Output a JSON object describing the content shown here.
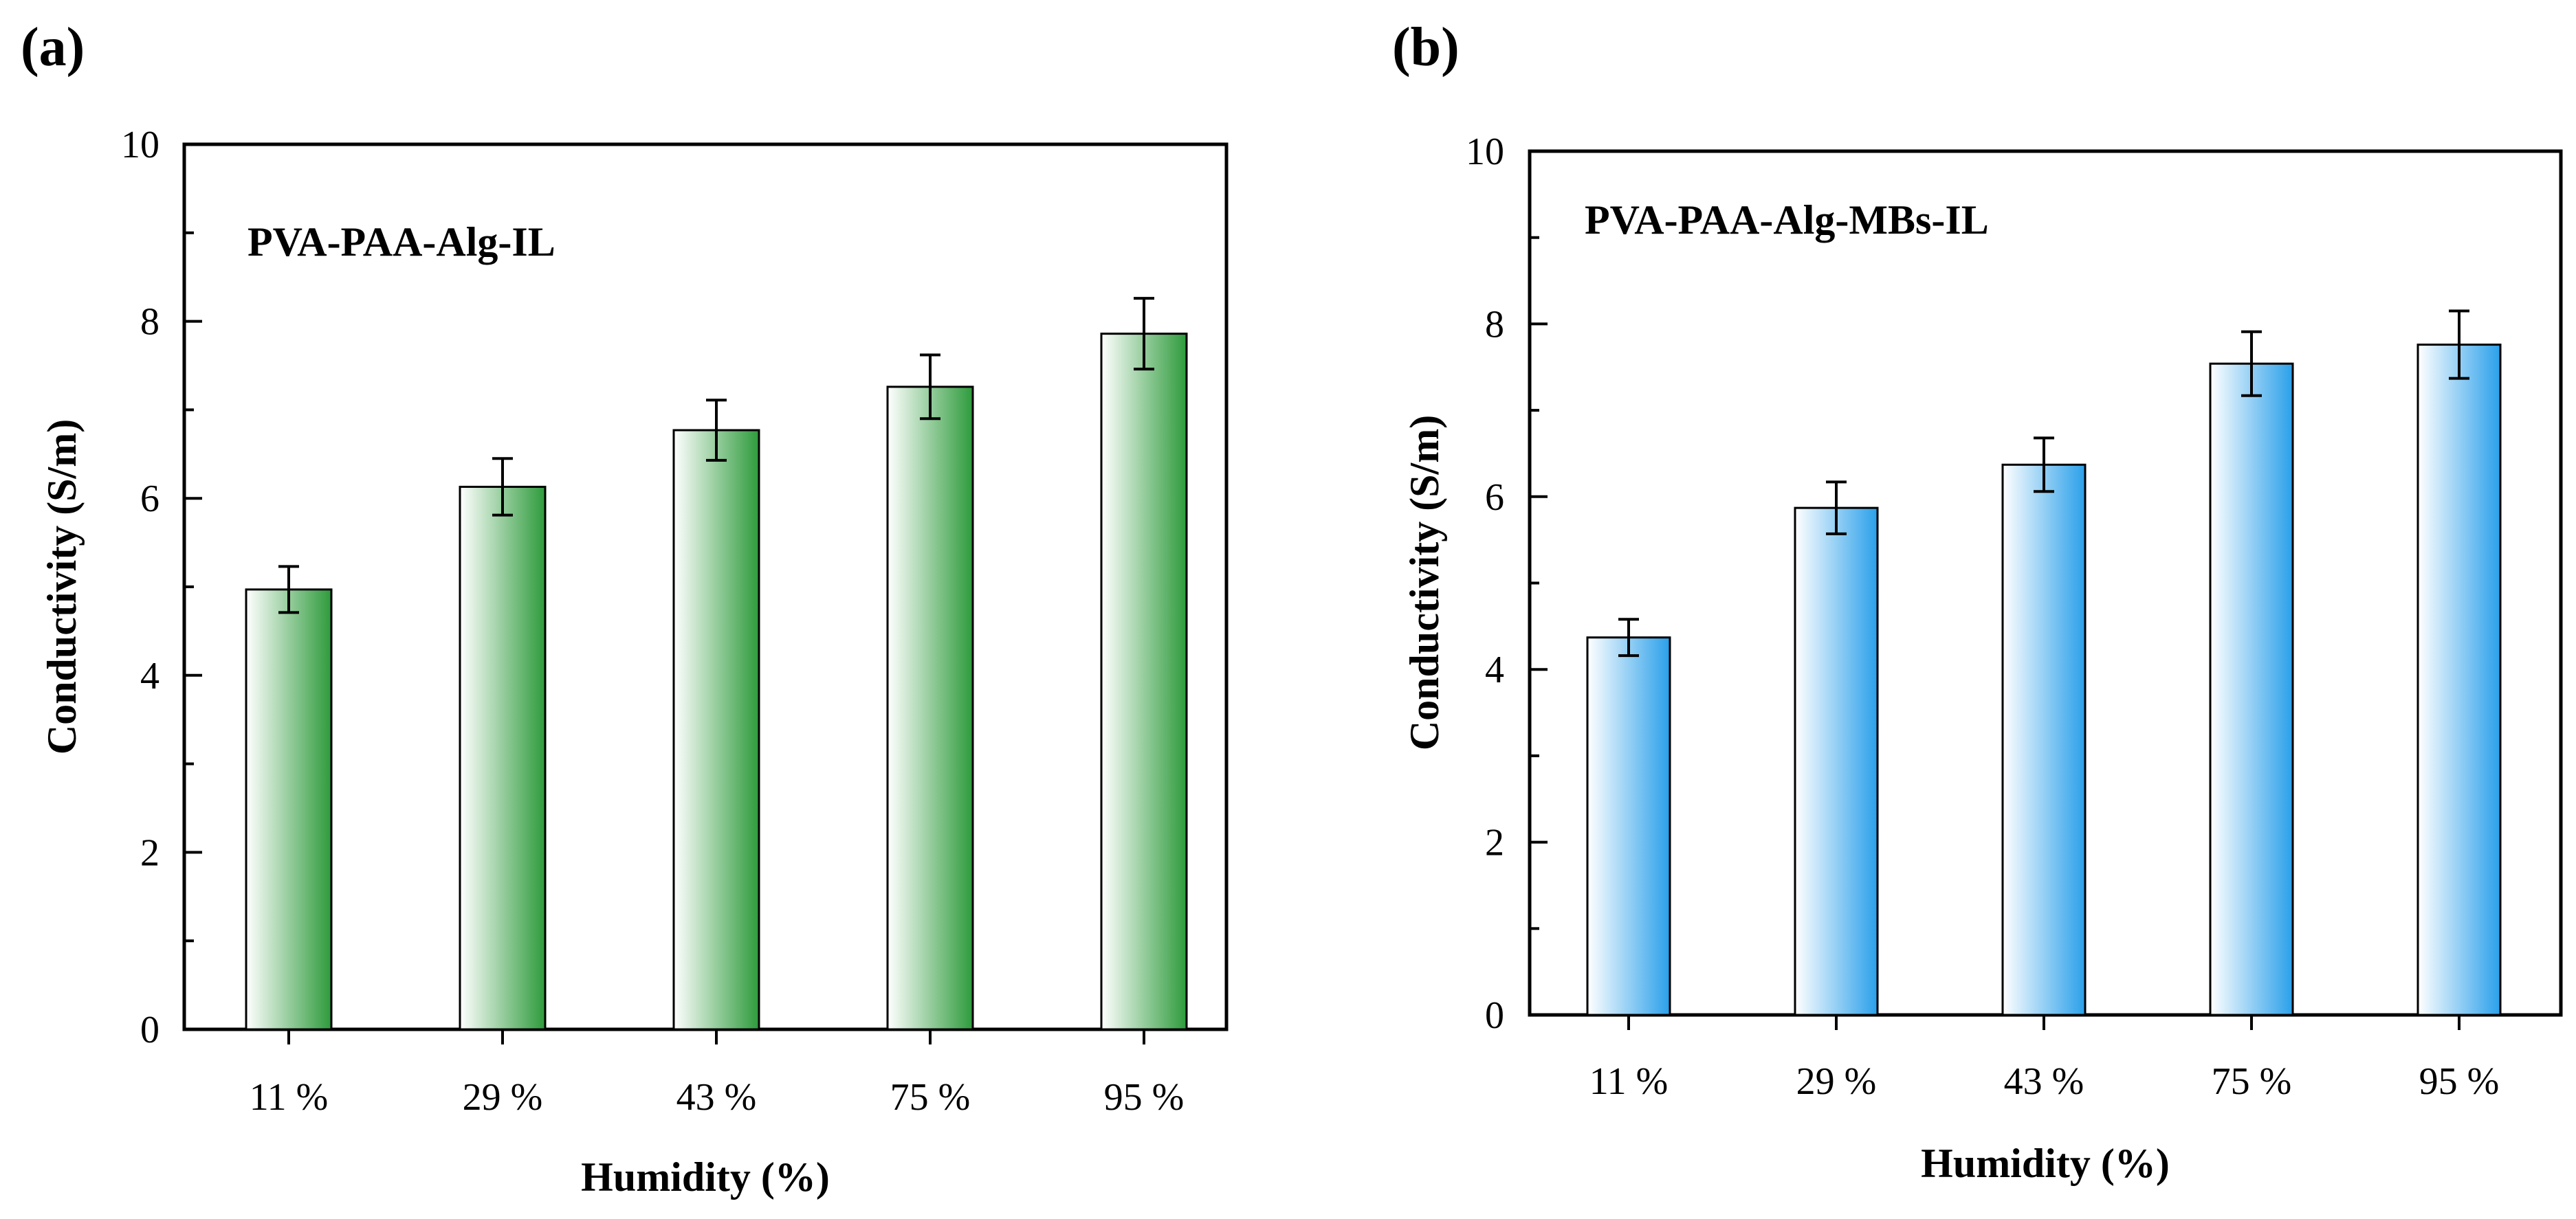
{
  "chart_data": [
    {
      "type": "bar",
      "panel_label": "(a)",
      "title": "PVA-PAA-Alg-IL",
      "xlabel": "Humidity (%)",
      "ylabel": "Conductivity (S/m)",
      "categories": [
        "11 %",
        "29 %",
        "43 %",
        "75 %",
        "95 %"
      ],
      "values": [
        4.97,
        6.13,
        6.77,
        7.26,
        7.86
      ],
      "errors": [
        0.26,
        0.32,
        0.34,
        0.36,
        0.4
      ],
      "ylim": [
        0,
        10
      ],
      "yticks": [
        0,
        2,
        4,
        6,
        8,
        10
      ],
      "ytick_labels": [
        "0",
        "2",
        "4",
        "6",
        "8",
        "10"
      ],
      "grid": false,
      "bar_color": "#2e9b3c",
      "bar_edge_color": "#000000"
    },
    {
      "type": "bar",
      "panel_label": "(b)",
      "title": "PVA-PAA-Alg-MBs-IL",
      "xlabel": "Humidity (%)",
      "ylabel": "Conductivity (S/m)",
      "categories": [
        "11 %",
        "29 %",
        "43 %",
        "75 %",
        "95 %"
      ],
      "values": [
        4.37,
        5.87,
        6.37,
        7.54,
        7.76
      ],
      "errors": [
        0.21,
        0.3,
        0.31,
        0.37,
        0.39
      ],
      "ylim": [
        0,
        10
      ],
      "yticks": [
        0,
        2,
        4,
        6,
        8,
        10
      ],
      "ytick_labels": [
        "0",
        "2",
        "4",
        "6",
        "8",
        "10"
      ],
      "grid": false,
      "bar_color": "#2aa0ea",
      "bar_edge_color": "#000000"
    }
  ]
}
